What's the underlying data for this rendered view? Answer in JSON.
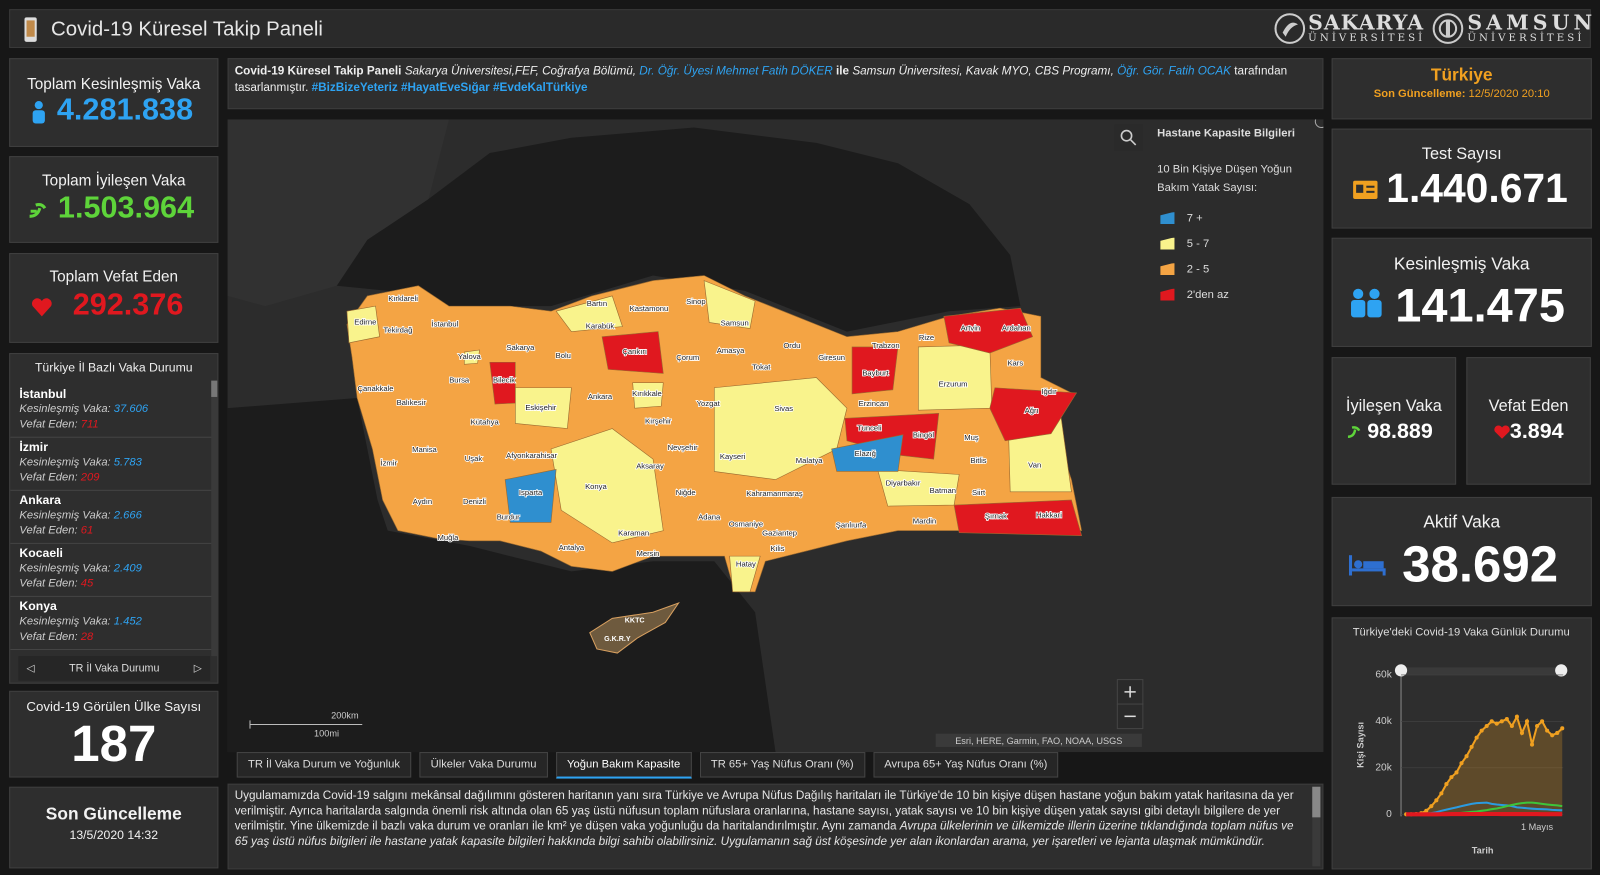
{
  "header": {
    "title": "Covid-19 Küresel Takip Paneli",
    "logos": [
      {
        "name": "SAKARYA",
        "subtitle": "ÜNİVERSİTESİ"
      },
      {
        "name": "SAMSUN",
        "subtitle": "ÜNİVERSİTESİ"
      }
    ]
  },
  "global": {
    "confirmed": {
      "label": "Toplam Kesinleşmiş Vaka",
      "value": "4.281.838"
    },
    "recovered": {
      "label": "Toplam İyileşen Vaka",
      "value": "1.503.964"
    },
    "deaths": {
      "label": "Toplam Vefat Eden",
      "value": "292.376"
    },
    "countries": {
      "label": "Covid-19 Görülen Ülke Sayısı",
      "value": "187"
    },
    "last_update": {
      "label": "Son Güncelleme",
      "value": "13/5/2020 14:32"
    }
  },
  "province_list": {
    "title": "Türkiye İl Bazlı Vaka Durumu",
    "confirmed_label": "Kesinleşmiş Vaka:",
    "deaths_label": "Vefat Eden:",
    "items": [
      {
        "name": "İstanbul",
        "confirmed": "37.606",
        "deaths": "711"
      },
      {
        "name": "İzmir",
        "confirmed": "5.783",
        "deaths": "209"
      },
      {
        "name": "Ankara",
        "confirmed": "2.666",
        "deaths": "61"
      },
      {
        "name": "Kocaeli",
        "confirmed": "2.409",
        "deaths": "45"
      },
      {
        "name": "Konya",
        "confirmed": "1.452",
        "deaths": "28"
      }
    ],
    "nav_label": "TR İl Vaka Durumu"
  },
  "info": {
    "segments": [
      "Covid-19 Küresel Takip Paneli",
      "Sakarya Üniversitesi,FEF, Coğrafya Bölümü,",
      "Dr. Öğr. Üyesi Mehmet Fatih DÖKER",
      "ile",
      "Samsun Üniversitesi, Kavak MYO, CBS Programı,",
      "Öğr. Gör. Fatih OCAK",
      "tarafından tasarlanmıştır.",
      "#BizBizeYeteriz #HayatEveSığar #EvdeKalTürkiye"
    ]
  },
  "map": {
    "legend": {
      "title": "Hastane Kapasite Bilgileri",
      "subtitle": "10 Bin Kişiye Düşen Yoğun Bakım Yatak Sayısı:",
      "items": [
        {
          "label": "7 +",
          "color": "#2f8fcf"
        },
        {
          "label": "5 - 7",
          "color": "#f9f38c"
        },
        {
          "label": "2 - 5",
          "color": "#f4a444"
        },
        {
          "label": "2'den az",
          "color": "#e0181f"
        }
      ]
    },
    "provinces": [
      "Kırklareli",
      "Edirne",
      "Tekirdağ",
      "İstanbul",
      "Bartın",
      "Kastamonu",
      "Sinop",
      "Karabük",
      "Samsun",
      "Çankırı",
      "Sakarya",
      "Yalova",
      "Bolu",
      "Çorum",
      "Amasya",
      "Ordu",
      "Trabzon",
      "Rize",
      "Artvin",
      "Ardahan",
      "Giresun",
      "Bursa",
      "Bilecik",
      "Tokat",
      "Bayburt",
      "Kars",
      "Çanakkale",
      "Balıkesir",
      "Eskişehir",
      "Ankara",
      "Kırıkkale",
      "Yozgat",
      "Erzurum",
      "Iğdır",
      "Ağrı",
      "Erzincan",
      "Sivas",
      "Kütahya",
      "Kırşehir",
      "Tunceli",
      "Bingöl",
      "Manisa",
      "Afyonkarahisar",
      "Nevşehir",
      "Elazığ",
      "Muş",
      "İzmir",
      "Uşak",
      "Kayseri",
      "Malatya",
      "Bitlis",
      "Van",
      "Aksaray",
      "Diyarbakır",
      "Isparta",
      "Konya",
      "Niğde",
      "Batman",
      "Siirt",
      "Aydın",
      "Denizli",
      "Kahramanmaraş",
      "Şırnak",
      "Hakkari",
      "Burdur",
      "Şanlıurfa",
      "Mardin",
      "Muğla",
      "Karaman",
      "Adana",
      "Osmaniye",
      "Gaziantep",
      "Kilis",
      "Antalya",
      "Mersin",
      "Hatay"
    ],
    "cyprus": [
      "KKTC",
      "G.K.R.Y"
    ],
    "scale": [
      "200km",
      "100mi"
    ],
    "attribution": "Esri, HERE, Garmin, FAO, NOAA, USGS"
  },
  "tabs": {
    "items": [
      "TR İl Vaka Durum ve Yoğunluk",
      "Ülkeler Vaka Durumu",
      "Yoğun Bakım Kapasite",
      "TR 65+ Yaş Nüfus Oranı (%)",
      "Avrupa 65+ Yaş Nüfus Oranı (%)"
    ],
    "active": 2
  },
  "description": {
    "segments": [
      "Uygulamamızda Covid-19 salgını mekânsal dağılımını gösteren haritanın yanı sıra Türkiye ve Avrupa Nüfus Dağılış haritaları ile Türkiye'de 10 bin kişiye düşen hastane yoğun bakım yatak haritasına da yer verilmiştir. Ayrıca haritalarda salgında önemli risk altında olan 65 yaş üstü nüfusun toplam nüfuslara oranlarına, hastane sayısı, yatak sayısı ve 10 bin kişiye düşen yatak sayısı gibi detaylı bilgilere de yer verilmiştir. Yine ülkemizde il bazlı vaka durum ve oranları ile km² ye düşen vaka yoğunluğu da haritalandırılmıştır. Aynı zamanda",
      "Avrupa ülkelerinin ve ülkemizde illerin üzerine tıklandığında toplam nüfus ve 65 yaş üstü nüfus bilgileri ile hastane yatak kapasite bilgileri hakkında bilgi sahibi olabilirsiniz. Uygulamanın sağ üst köşesinde yer alan ikonlardan arama, yer işaretleri ve lejanta ulaşmak mümkündür."
    ]
  },
  "turkey": {
    "title": "Türkiye",
    "update_label": "Son Güncelleme:",
    "update_value": "12/5/2020 20:10",
    "tests": {
      "label": "Test Sayısı",
      "value": "1.440.671"
    },
    "confirmed": {
      "label": "Kesinleşmiş Vaka",
      "value": "141.475"
    },
    "recovered": {
      "label": "İyileşen Vaka",
      "value": "98.889"
    },
    "deaths": {
      "label": "Vefat Eden",
      "value": "3.894"
    },
    "active": {
      "label": "Aktif Vaka",
      "value": "38.692"
    }
  },
  "chart_data": {
    "type": "line",
    "title": "Türkiye'deki Covid-19 Vaka Günlük Durumu",
    "x_label": "Tarih",
    "y_label": "Kişi Sayısı",
    "categories": [
      null,
      null,
      null,
      null,
      null,
      null,
      null,
      null,
      null,
      null,
      null,
      null,
      null,
      null,
      null,
      null,
      null,
      null,
      null,
      null,
      null,
      null,
      null,
      null,
      null,
      null,
      "1 Mayıs",
      null,
      null,
      null,
      null,
      null
    ],
    "series": [
      {
        "color": "#f0a020",
        "values": [
          0,
          0,
          100,
          500,
          1500,
          3500,
          6000,
          9000,
          13000,
          16000,
          18000,
          22000,
          25000,
          29000,
          33000,
          36000,
          38000,
          40000,
          39000,
          40000,
          41000,
          38000,
          42000,
          35000,
          40000,
          30000,
          38000,
          40000,
          36000,
          34000,
          35000,
          37000
        ]
      },
      {
        "color": "#2b9be0",
        "values": [
          0,
          0,
          0,
          100,
          300,
          500,
          900,
          1500,
          2000,
          2500,
          3000,
          3500,
          4000,
          4500,
          4800,
          4900,
          5000,
          4500,
          4200,
          4000,
          3800,
          3500,
          3000,
          2800,
          2600,
          2400,
          2300,
          2200,
          2100,
          1900,
          1800,
          1700
        ]
      },
      {
        "color": "#3ec43a",
        "values": [
          0,
          0,
          0,
          0,
          0,
          0,
          50,
          100,
          200,
          300,
          400,
          600,
          800,
          1000,
          1200,
          1500,
          1800,
          2200,
          2500,
          3000,
          3500,
          4000,
          4500,
          4800,
          5000,
          5000,
          4800,
          4500,
          4200,
          4000,
          3800,
          3500
        ]
      },
      {
        "color": "#e0181f",
        "values": [
          0,
          0,
          0,
          0,
          5,
          10,
          20,
          40,
          60,
          70,
          80,
          90,
          100,
          110,
          120,
          125,
          120,
          115,
          110,
          105,
          100,
          95,
          90,
          85,
          80,
          75,
          70,
          65,
          60,
          58,
          55,
          50
        ]
      }
    ],
    "ylim": [
      0,
      65000
    ],
    "yticks": [
      0,
      {
        "value": 20000,
        "label": "20k"
      },
      {
        "value": 40000,
        "label": "40k"
      },
      {
        "value": 60000,
        "label": "60k"
      }
    ],
    "grid": true
  }
}
